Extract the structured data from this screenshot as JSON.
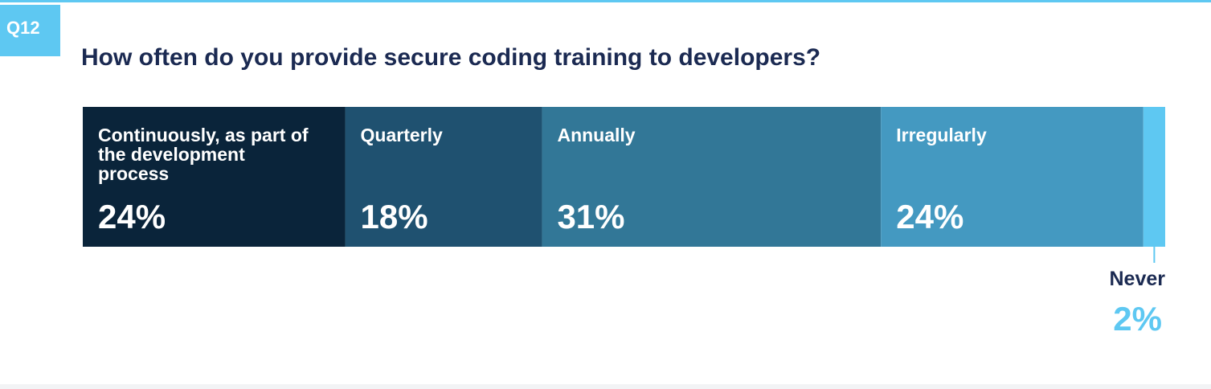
{
  "badge": "Q12",
  "chart_data": {
    "type": "bar",
    "stacked": true,
    "orientation": "horizontal",
    "title": "How often do you provide secure coding training to developers?",
    "unit": "%",
    "categories": [
      "Continuously, as part of the development process",
      "Quarterly",
      "Annually",
      "Irregularly",
      "Never"
    ],
    "label_lines": [
      [
        "Continuously, as part of",
        "the development",
        "process"
      ],
      [
        "Quarterly"
      ],
      [
        "Annually"
      ],
      [
        "Irregularly"
      ],
      [
        "Never"
      ]
    ],
    "values": [
      24,
      18,
      31,
      24,
      2
    ],
    "value_labels": [
      "24%",
      "18%",
      "31%",
      "24%",
      "2%"
    ],
    "colors": [
      "#0a243a",
      "#1f5170",
      "#327797",
      "#4499c1",
      "#5ec8f2"
    ]
  }
}
